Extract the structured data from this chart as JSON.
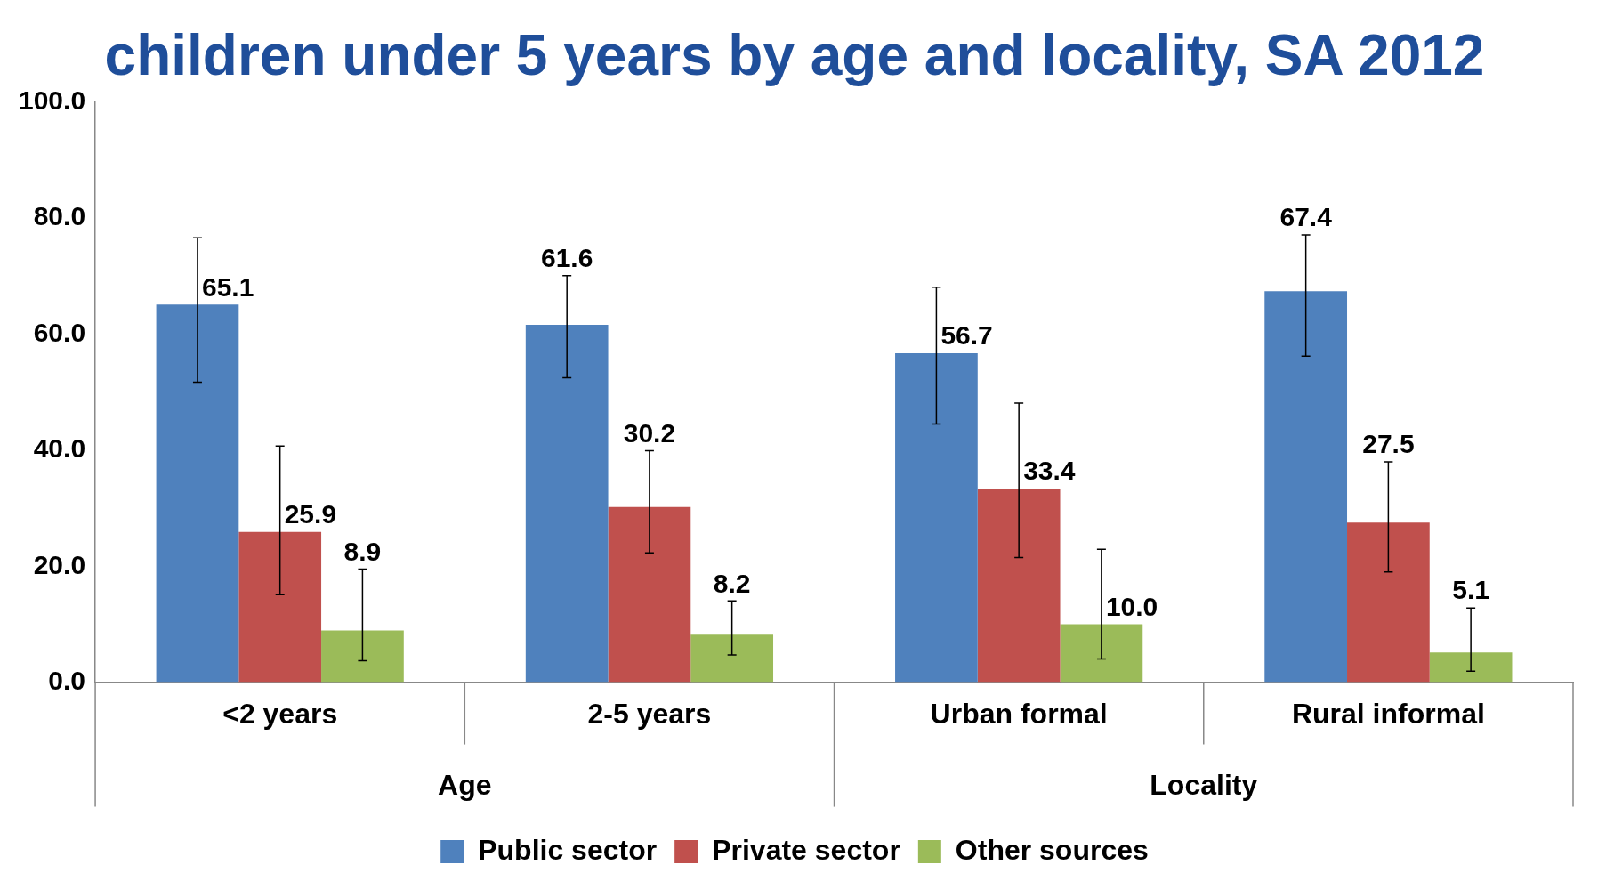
{
  "chart_data": {
    "type": "bar",
    "title": "children under 5 years by age and locality, SA 2012",
    "categories": [
      "<2 years",
      "2-5 years",
      "Urban formal",
      "Rural informal"
    ],
    "series": [
      {
        "name": "Public sector",
        "color": "#4f81bd",
        "values": [
          65.1,
          61.6,
          56.7,
          67.4
        ],
        "value_labels": [
          "65.1",
          "61.6",
          "56.7",
          "67.4"
        ],
        "errors": [
          [
            51.7,
            76.6
          ],
          [
            52.5,
            70.1
          ],
          [
            44.5,
            68.1
          ],
          [
            56.2,
            77.1
          ]
        ]
      },
      {
        "name": "Private sector",
        "color": "#c0504d",
        "values": [
          25.9,
          30.2,
          33.4,
          27.5
        ],
        "value_labels": [
          "25.9",
          "30.2",
          "33.4",
          "27.5"
        ],
        "errors": [
          [
            15.1,
            40.7
          ],
          [
            22.3,
            39.9
          ],
          [
            21.5,
            48.1
          ],
          [
            19.0,
            38.0
          ]
        ]
      },
      {
        "name": "Other sources",
        "color": "#9bbb59",
        "values": [
          8.9,
          8.2,
          10.0,
          5.1
        ],
        "value_labels": [
          "8.9",
          "8.2",
          "10.0",
          "5.1"
        ],
        "errors": [
          [
            3.7,
            19.5
          ],
          [
            4.7,
            14.0
          ],
          [
            4.0,
            22.9
          ],
          [
            1.9,
            12.8
          ]
        ]
      }
    ],
    "annotations": [
      "Age",
      "Locality"
    ],
    "ylim": [
      0,
      100
    ],
    "yticks": [
      {
        "value": 0,
        "label": "0.0"
      },
      {
        "value": 20,
        "label": "20.0"
      },
      {
        "value": 40,
        "label": "40.0"
      },
      {
        "value": 60,
        "label": "60.0"
      },
      {
        "value": 80,
        "label": "80.0"
      },
      {
        "value": 100,
        "label": "100.0"
      }
    ],
    "grid": false,
    "legend": "bottom"
  }
}
